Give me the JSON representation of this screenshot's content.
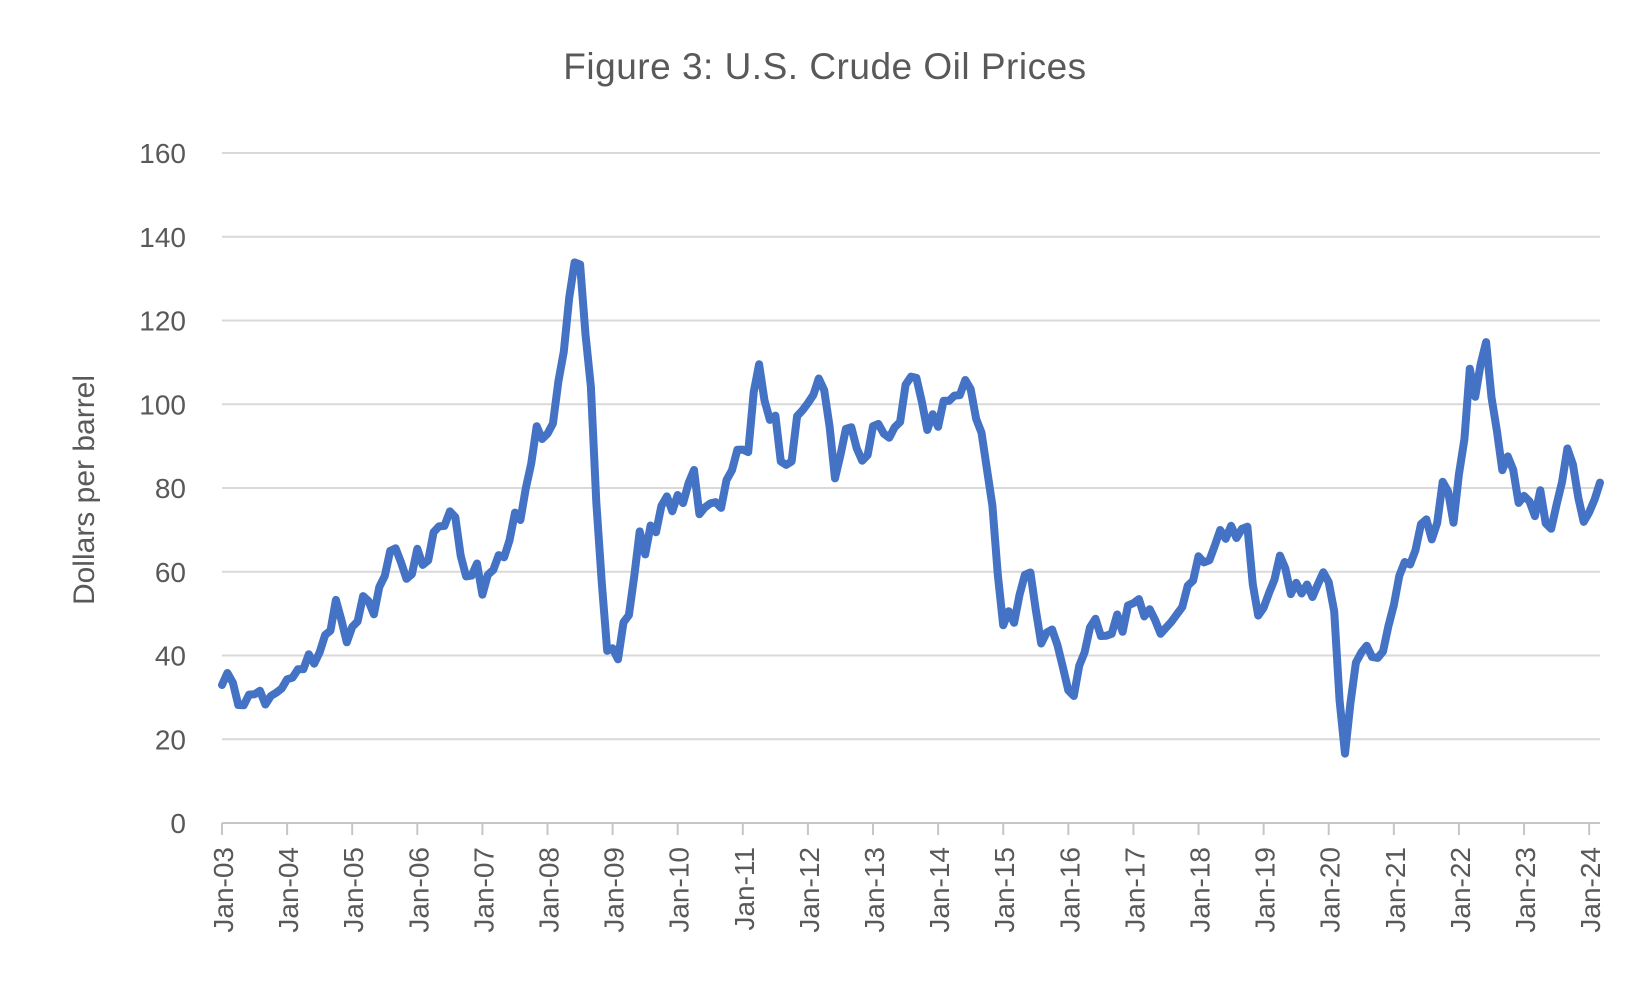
{
  "title": "Figure 3: U.S. Crude Oil Prices",
  "chart_data": {
    "type": "line",
    "title": "Figure 3: U.S. Crude Oil Prices",
    "xlabel": "",
    "ylabel": "Dollars per barrel",
    "ylim": [
      0,
      160
    ],
    "yticks": [
      0,
      20,
      40,
      60,
      80,
      100,
      120,
      140,
      160
    ],
    "grid": "horizontal",
    "legend": "none",
    "frequency": "monthly",
    "x_start": "Jan-03",
    "x_end": "Mar-24",
    "x_tick_labels": [
      "Jan-03",
      "Jan-04",
      "Jan-05",
      "Jan-06",
      "Jan-07",
      "Jan-08",
      "Jan-09",
      "Jan-10",
      "Jan-11",
      "Jan-12",
      "Jan-13",
      "Jan-14",
      "Jan-15",
      "Jan-16",
      "Jan-17",
      "Jan-18",
      "Jan-19",
      "Jan-20",
      "Jan-21",
      "Jan-22",
      "Jan-23",
      "Jan-24"
    ],
    "x_tick_every_n_points": 12,
    "colors": {
      "line": "#4472C4",
      "gridline": "#D9D9D9",
      "axis": "#C6C6C6",
      "text": "#595959"
    },
    "series": [
      {
        "name": "Crude oil price",
        "color": "#4472C4",
        "values": [
          32.95,
          35.83,
          33.51,
          28.17,
          28.11,
          30.66,
          30.76,
          31.57,
          28.31,
          30.34,
          31.11,
          32.13,
          34.31,
          34.69,
          36.74,
          36.75,
          40.28,
          38.03,
          40.78,
          44.9,
          45.94,
          53.28,
          48.47,
          43.15,
          46.84,
          48.15,
          54.19,
          52.98,
          49.83,
          56.35,
          59.0,
          64.99,
          65.59,
          62.26,
          58.32,
          59.41,
          65.49,
          61.63,
          62.69,
          69.44,
          70.84,
          70.95,
          74.41,
          73.04,
          63.8,
          58.89,
          59.08,
          61.96,
          54.51,
          59.28,
          60.44,
          63.98,
          63.45,
          67.49,
          74.12,
          72.36,
          79.92,
          85.8,
          94.77,
          91.69,
          92.97,
          95.39,
          105.45,
          112.58,
          125.4,
          133.88,
          133.37,
          116.67,
          104.11,
          76.61,
          57.31,
          41.12,
          41.71,
          39.09,
          47.94,
          49.65,
          59.03,
          69.64,
          64.15,
          71.05,
          69.41,
          75.72,
          77.99,
          74.47,
          78.33,
          76.39,
          81.2,
          84.29,
          73.74,
          75.34,
          76.32,
          76.6,
          75.24,
          81.89,
          84.25,
          89.15,
          89.17,
          88.58,
          102.86,
          109.53,
          100.9,
          96.26,
          97.3,
          86.33,
          85.52,
          86.32,
          97.16,
          98.56,
          100.27,
          102.2,
          106.16,
          103.32,
          94.66,
          82.3,
          87.9,
          94.13,
          94.51,
          89.49,
          86.53,
          87.86,
          94.76,
          95.31,
          92.94,
          92.02,
          94.51,
          95.77,
          104.67,
          106.57,
          106.29,
          100.54,
          93.86,
          97.63,
          94.62,
          100.82,
          100.8,
          102.07,
          102.18,
          105.79,
          103.59,
          96.54,
          93.21,
          84.4,
          75.79,
          59.29,
          47.22,
          50.58,
          47.82,
          54.45,
          59.27,
          59.82,
          50.9,
          42.87,
          45.48,
          46.22,
          42.44,
          37.19,
          31.68,
          30.32,
          37.55,
          40.76,
          46.71,
          48.76,
          44.65,
          44.72,
          45.18,
          49.78,
          45.66,
          51.97,
          52.5,
          53.47,
          49.33,
          51.06,
          48.48,
          45.18,
          46.63,
          48.04,
          49.82,
          51.58,
          56.64,
          57.88,
          63.7,
          62.23,
          62.73,
          66.25,
          69.98,
          67.87,
          70.98,
          68.06,
          70.23,
          70.75,
          56.96,
          49.52,
          51.38,
          54.95,
          58.15,
          63.86,
          60.83,
          54.66,
          57.35,
          54.81,
          56.95,
          53.96,
          57.03,
          59.88,
          57.52,
          50.54,
          29.21,
          16.55,
          28.56,
          38.31,
          40.71,
          42.34,
          39.63,
          39.4,
          40.94,
          47.02,
          52.0,
          59.04,
          62.33,
          61.72,
          65.17,
          71.38,
          72.49,
          67.73,
          71.65,
          81.48,
          79.15,
          71.71,
          83.22,
          91.64,
          108.5,
          101.78,
          109.55,
          114.84,
          101.62,
          93.67,
          84.26,
          87.55,
          84.37,
          76.44,
          78.12,
          76.83,
          73.28,
          79.45,
          71.58,
          70.25,
          76.07,
          81.39,
          89.43,
          85.64,
          77.69,
          71.9,
          74.15,
          77.25,
          81.28
        ]
      }
    ]
  }
}
